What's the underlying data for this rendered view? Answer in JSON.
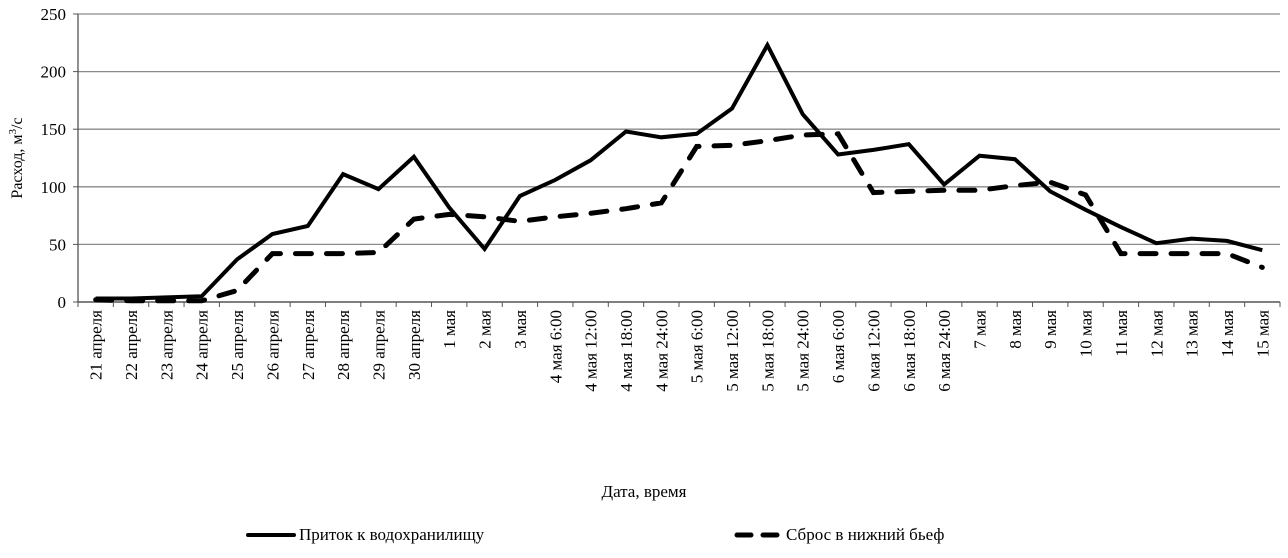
{
  "chart_data": {
    "type": "line",
    "title": "",
    "xlabel": "Дата, время",
    "ylabel": "Расход, м³/с",
    "ylabel_base": "Расход, м",
    "ylabel_sup": "3",
    "ylabel_tail": "/с",
    "ylim": [
      0,
      250
    ],
    "yticks": [
      0,
      50,
      100,
      150,
      200,
      250
    ],
    "grid": true,
    "legend_position": "bottom",
    "categories": [
      "21 апреля",
      "22 апреля",
      "23 апреля",
      "24 апреля",
      "25 апреля",
      "26 апреля",
      "27 апреля",
      "28 апреля",
      "29 апреля",
      "30 апреля",
      "1 мая",
      "2 мая",
      "3 мая",
      "4 мая 6:00",
      "4 мая 12:00",
      "4 мая 18:00",
      "4 мая 24:00",
      "5 мая 6:00",
      "5 мая 12:00",
      "5 мая 18:00",
      "5 мая 24:00",
      "6 мая 6:00",
      "6 мая 12:00",
      "6 мая 18:00",
      "6 мая 24:00",
      "7 мая",
      "8 мая",
      "9 мая",
      "10 мая",
      "11 мая",
      "12 мая",
      "13 мая",
      "14 мая",
      "15 мая"
    ],
    "series": [
      {
        "name": "Приток к водохранилищу",
        "style": "solid",
        "color": "#000000",
        "values": [
          3,
          3,
          4,
          5,
          37,
          59,
          66,
          111,
          98,
          126,
          82,
          46,
          92,
          106,
          123,
          148,
          143,
          146,
          168,
          223,
          163,
          128,
          132,
          137,
          102,
          127,
          124,
          96,
          80,
          65,
          51,
          55,
          53,
          45
        ]
      },
      {
        "name": "Сброс в нижний бьеф",
        "style": "dashed",
        "color": "#000000",
        "values": [
          2,
          1,
          1,
          1,
          10,
          42,
          42,
          42,
          43,
          72,
          76,
          74,
          70,
          74,
          77,
          81,
          86,
          135,
          136,
          140,
          145,
          146,
          95,
          96,
          97,
          97,
          101,
          104,
          93,
          42,
          42,
          42,
          42,
          30
        ]
      }
    ]
  },
  "legend": {
    "inflow_label": "Приток к водохранилищу",
    "release_label": "Сброс в нижний бьеф"
  }
}
